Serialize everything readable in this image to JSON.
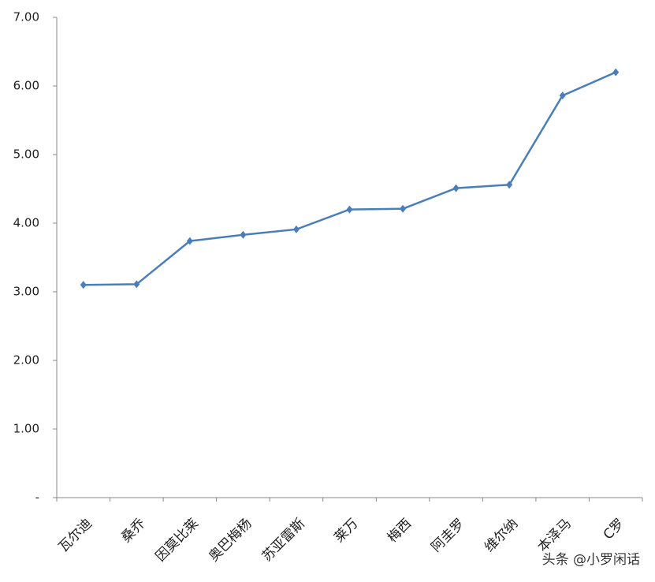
{
  "chart_data": {
    "type": "line",
    "categories": [
      "瓦尔迪",
      "桑乔",
      "因莫比莱",
      "奥巴梅杨",
      "苏亚雷斯",
      "莱万",
      "梅西",
      "阿圭罗",
      "维尔纳",
      "本泽马",
      "C罗"
    ],
    "values": [
      3.1,
      3.11,
      3.74,
      3.83,
      3.91,
      4.2,
      4.21,
      4.51,
      4.56,
      5.86,
      6.2
    ],
    "color": "#4a7ebb",
    "ylim": [
      0,
      7
    ],
    "yticks": [
      {
        "value": 0,
        "label": "-"
      },
      {
        "value": 1,
        "label": "1.00"
      },
      {
        "value": 2,
        "label": "2.00"
      },
      {
        "value": 3,
        "label": "3.00"
      },
      {
        "value": 4,
        "label": "4.00"
      },
      {
        "value": 5,
        "label": "5.00"
      },
      {
        "value": 6,
        "label": "6.00"
      },
      {
        "value": 7,
        "label": "7.00"
      }
    ],
    "grid": false,
    "watermark": "头条 @小罗闲话"
  }
}
